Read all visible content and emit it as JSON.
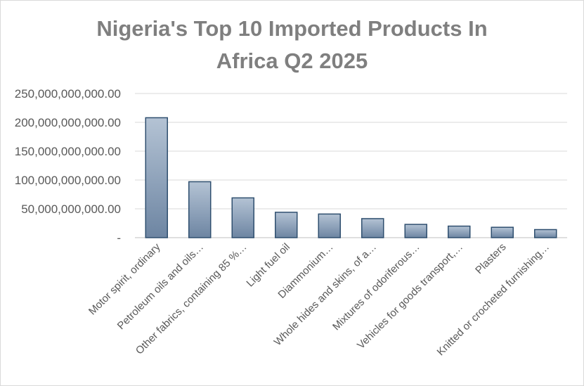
{
  "chart_data": {
    "type": "bar",
    "title_lines": [
      "Nigeria's Top 10 Imported Products In",
      "Africa Q2 2025"
    ],
    "categories": [
      "Motor spirit, ordinary",
      "Petroleum oils and oils…",
      "Other fabrics, containing 85 %…",
      "Light fuel oil",
      "Diammonium…",
      "Whole hides and skins, of a…",
      "Mixtures of odoriferous…",
      "Vehicles for goods transport,…",
      "Plasters",
      "Knitted or crocheted furnishing…"
    ],
    "values": [
      208000000000,
      97000000000,
      69000000000,
      44000000000,
      41000000000,
      33000000000,
      23000000000,
      20000000000,
      18000000000,
      14000000000
    ],
    "ylim": [
      0,
      250000000000
    ],
    "yticks": [
      {
        "value": 0,
        "label": "-"
      },
      {
        "value": 50000000000,
        "label": "50,000,000,000.00"
      },
      {
        "value": 100000000000,
        "label": "100,000,000,000.00"
      },
      {
        "value": 150000000000,
        "label": "150,000,000,000.00"
      },
      {
        "value": 200000000000,
        "label": "200,000,000,000.00"
      },
      {
        "value": 250000000000,
        "label": "250,000,000,000.00"
      }
    ],
    "grid": true,
    "bar_color": "#8497b0",
    "bar_edge_color": "#2f4f6f"
  }
}
